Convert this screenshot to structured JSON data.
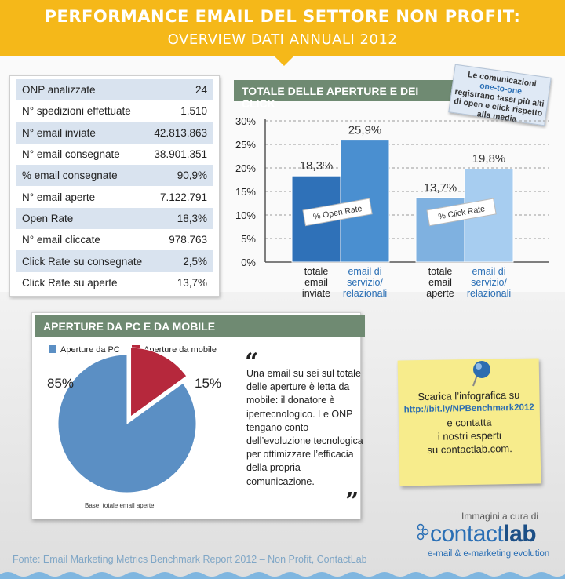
{
  "header": {
    "title": "PERFORMANCE EMAIL DEL SETTORE NON PROFIT:",
    "subtitle": "OVERVIEW DATI ANNUALI 2012"
  },
  "stats": [
    {
      "label": "ONP analizzate",
      "value": "24"
    },
    {
      "label": "N° spedizioni effettuate",
      "value": "1.510"
    },
    {
      "label": "N° email inviate",
      "value": "42.813.863"
    },
    {
      "label": "N° email consegnate",
      "value": "38.901.351"
    },
    {
      "label": "% email consegnate",
      "value": "90,9%"
    },
    {
      "label": "N° email aperte",
      "value": "7.122.791"
    },
    {
      "label": "Open Rate",
      "value": "18,3%"
    },
    {
      "label": "N° email cliccate",
      "value": "978.763"
    },
    {
      "label": "Click Rate su consegnate",
      "value": "2,5%"
    },
    {
      "label": "Click Rate su aperte",
      "value": "13,7%"
    }
  ],
  "note": {
    "line1": "Le comunicazioni",
    "highlight": "one-to-one",
    "line2": "registrano tassi più alti di open e click rispetto alla media"
  },
  "chart_data": [
    {
      "type": "bar",
      "title": "TOTALE DELLE APERTURE E DEI CLICK",
      "ylim": [
        0,
        30
      ],
      "yticks": [
        "0%",
        "5%",
        "10%",
        "15%",
        "20%",
        "25%",
        "30%"
      ],
      "groups": [
        {
          "name": "% Open Rate",
          "bars": [
            {
              "category": "totale email inviate",
              "value": 18.3,
              "label": "18,3%"
            },
            {
              "category": "email di servizio/ relazionali",
              "value": 25.9,
              "label": "25,9%"
            }
          ]
        },
        {
          "name": "% Click Rate",
          "bars": [
            {
              "category": "totale email aperte",
              "value": 13.7,
              "label": "13,7%"
            },
            {
              "category": "email di servizio/ relazionali",
              "value": 19.8,
              "label": "19,8%"
            }
          ]
        }
      ],
      "category_lines": [
        [
          "totale",
          "email",
          "inviate"
        ],
        [
          "email di",
          "servizio/",
          "relazionali"
        ],
        [
          "totale",
          "email",
          "aperte"
        ],
        [
          "email di",
          "servizio/",
          "relazionali"
        ]
      ],
      "colors": {
        "open_dark": "#2f71b8",
        "open_light": "#4a8fd0",
        "click_dark": "#7fb1e0",
        "click_light": "#a7cdf0"
      }
    },
    {
      "type": "pie",
      "title": "APERTURE DA PC E DA MOBILE",
      "slices": [
        {
          "name": "Aperture da PC",
          "value": 85,
          "label": "85%",
          "color": "#5b8fc4"
        },
        {
          "name": "Aperture da mobile",
          "value": 15,
          "label": "15%",
          "color": "#b6283c"
        }
      ],
      "base": "Base: totale email aperte"
    }
  ],
  "quote": {
    "text": "Una email su sei sul totale delle aperture è letta da mobile: il donatore è ipertecnologico. Le ONP tengano conto dell’evoluzione tecnologica per ottimizzare l’efficacia della propria comunicazione.",
    "open": "“",
    "close": "”"
  },
  "postit": {
    "line1": "Scarica l’infografica su",
    "link": "http://bit.ly/NPBenchmark2012",
    "line2": "e contatta",
    "line3": "i nostri esperti",
    "line4": "su contactlab.com."
  },
  "footer": {
    "credit": "Immagini a cura di",
    "logo_a": "contact",
    "logo_b": "lab",
    "tagline": "e-mail & e-marketing evolution",
    "source": "Fonte: Email Marketing Metrics Benchmark Report 2012 – Non Profit, ContactLab"
  }
}
